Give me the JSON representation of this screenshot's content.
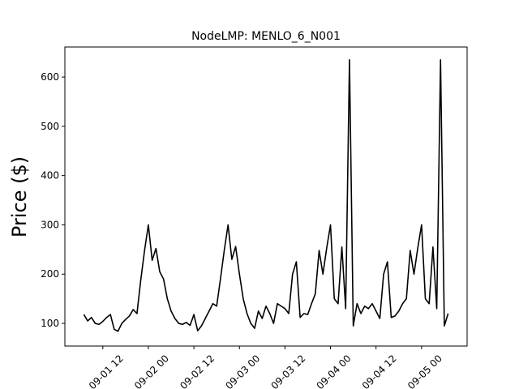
{
  "chart_data": {
    "type": "line",
    "title": "NodeLMP: MENLO_6_N001",
    "y_label": "Price ($)",
    "x": [
      "09-01 07",
      "09-01 08",
      "09-01 09",
      "09-01 10",
      "09-01 11",
      "09-01 12",
      "09-01 13",
      "09-01 14",
      "09-01 15",
      "09-01 16",
      "09-01 17",
      "09-01 18",
      "09-01 19",
      "09-01 20",
      "09-01 21",
      "09-01 22",
      "09-01 23",
      "09-02 00",
      "09-02 01",
      "09-02 02",
      "09-02 03",
      "09-02 04",
      "09-02 05",
      "09-02 06",
      "09-02 07",
      "09-02 08",
      "09-02 09",
      "09-02 10",
      "09-02 11",
      "09-02 12",
      "09-02 13",
      "09-02 14",
      "09-02 15",
      "09-02 16",
      "09-02 17",
      "09-02 18",
      "09-02 19",
      "09-02 20",
      "09-02 21",
      "09-02 22",
      "09-02 23",
      "09-03 00",
      "09-03 01",
      "09-03 02",
      "09-03 03",
      "09-03 04",
      "09-03 05",
      "09-03 06",
      "09-03 07",
      "09-03 08",
      "09-03 09",
      "09-03 10",
      "09-03 11",
      "09-03 12",
      "09-03 13",
      "09-03 14",
      "09-03 15",
      "09-03 16",
      "09-03 17",
      "09-03 18",
      "09-03 19",
      "09-03 20",
      "09-03 21",
      "09-03 22",
      "09-03 23",
      "09-04 00",
      "09-04 01",
      "09-04 02",
      "09-04 03",
      "09-04 04",
      "09-04 05",
      "09-04 06",
      "09-04 07",
      "09-04 08",
      "09-04 09",
      "09-04 10",
      "09-04 11",
      "09-04 12",
      "09-04 13",
      "09-04 14",
      "09-04 15",
      "09-04 16",
      "09-04 17",
      "09-04 18",
      "09-04 19",
      "09-04 20",
      "09-04 21",
      "09-04 22",
      "09-04 23",
      "09-05 00",
      "09-05 01",
      "09-05 02",
      "09-05 03",
      "09-05 04",
      "09-05 05",
      "09-05 06",
      "09-05 07"
    ],
    "series": [
      {
        "name": "NodeLMP",
        "color": "#000000",
        "values": [
          118,
          105,
          112,
          100,
          98,
          104,
          112,
          118,
          88,
          84,
          100,
          108,
          115,
          128,
          120,
          188,
          248,
          300,
          228,
          252,
          205,
          190,
          150,
          125,
          110,
          100,
          98,
          102,
          96,
          118,
          85,
          95,
          110,
          125,
          140,
          135,
          190,
          248,
          300,
          230,
          256,
          200,
          150,
          120,
          100,
          90,
          125,
          110,
          135,
          120,
          100,
          140,
          135,
          130,
          120,
          200,
          225,
          112,
          120,
          118,
          140,
          160,
          248,
          200,
          253,
          300,
          150,
          140,
          255,
          130,
          635,
          95,
          140,
          120,
          135,
          130,
          140,
          125,
          110,
          200,
          225,
          112,
          115,
          125,
          140,
          150,
          248,
          200,
          253,
          300,
          150,
          140,
          255,
          130,
          635,
          95,
          120
        ]
      }
    ],
    "xlim": [
      "09-01 02",
      "09-05 12"
    ],
    "xticks": [
      "09-01 12",
      "09-02 00",
      "09-02 12",
      "09-03 00",
      "09-03 12",
      "09-04 00",
      "09-04 12",
      "09-05 00"
    ],
    "ylim": [
      54,
      661
    ],
    "yticks": [
      100,
      200,
      300,
      400,
      500,
      600
    ]
  }
}
